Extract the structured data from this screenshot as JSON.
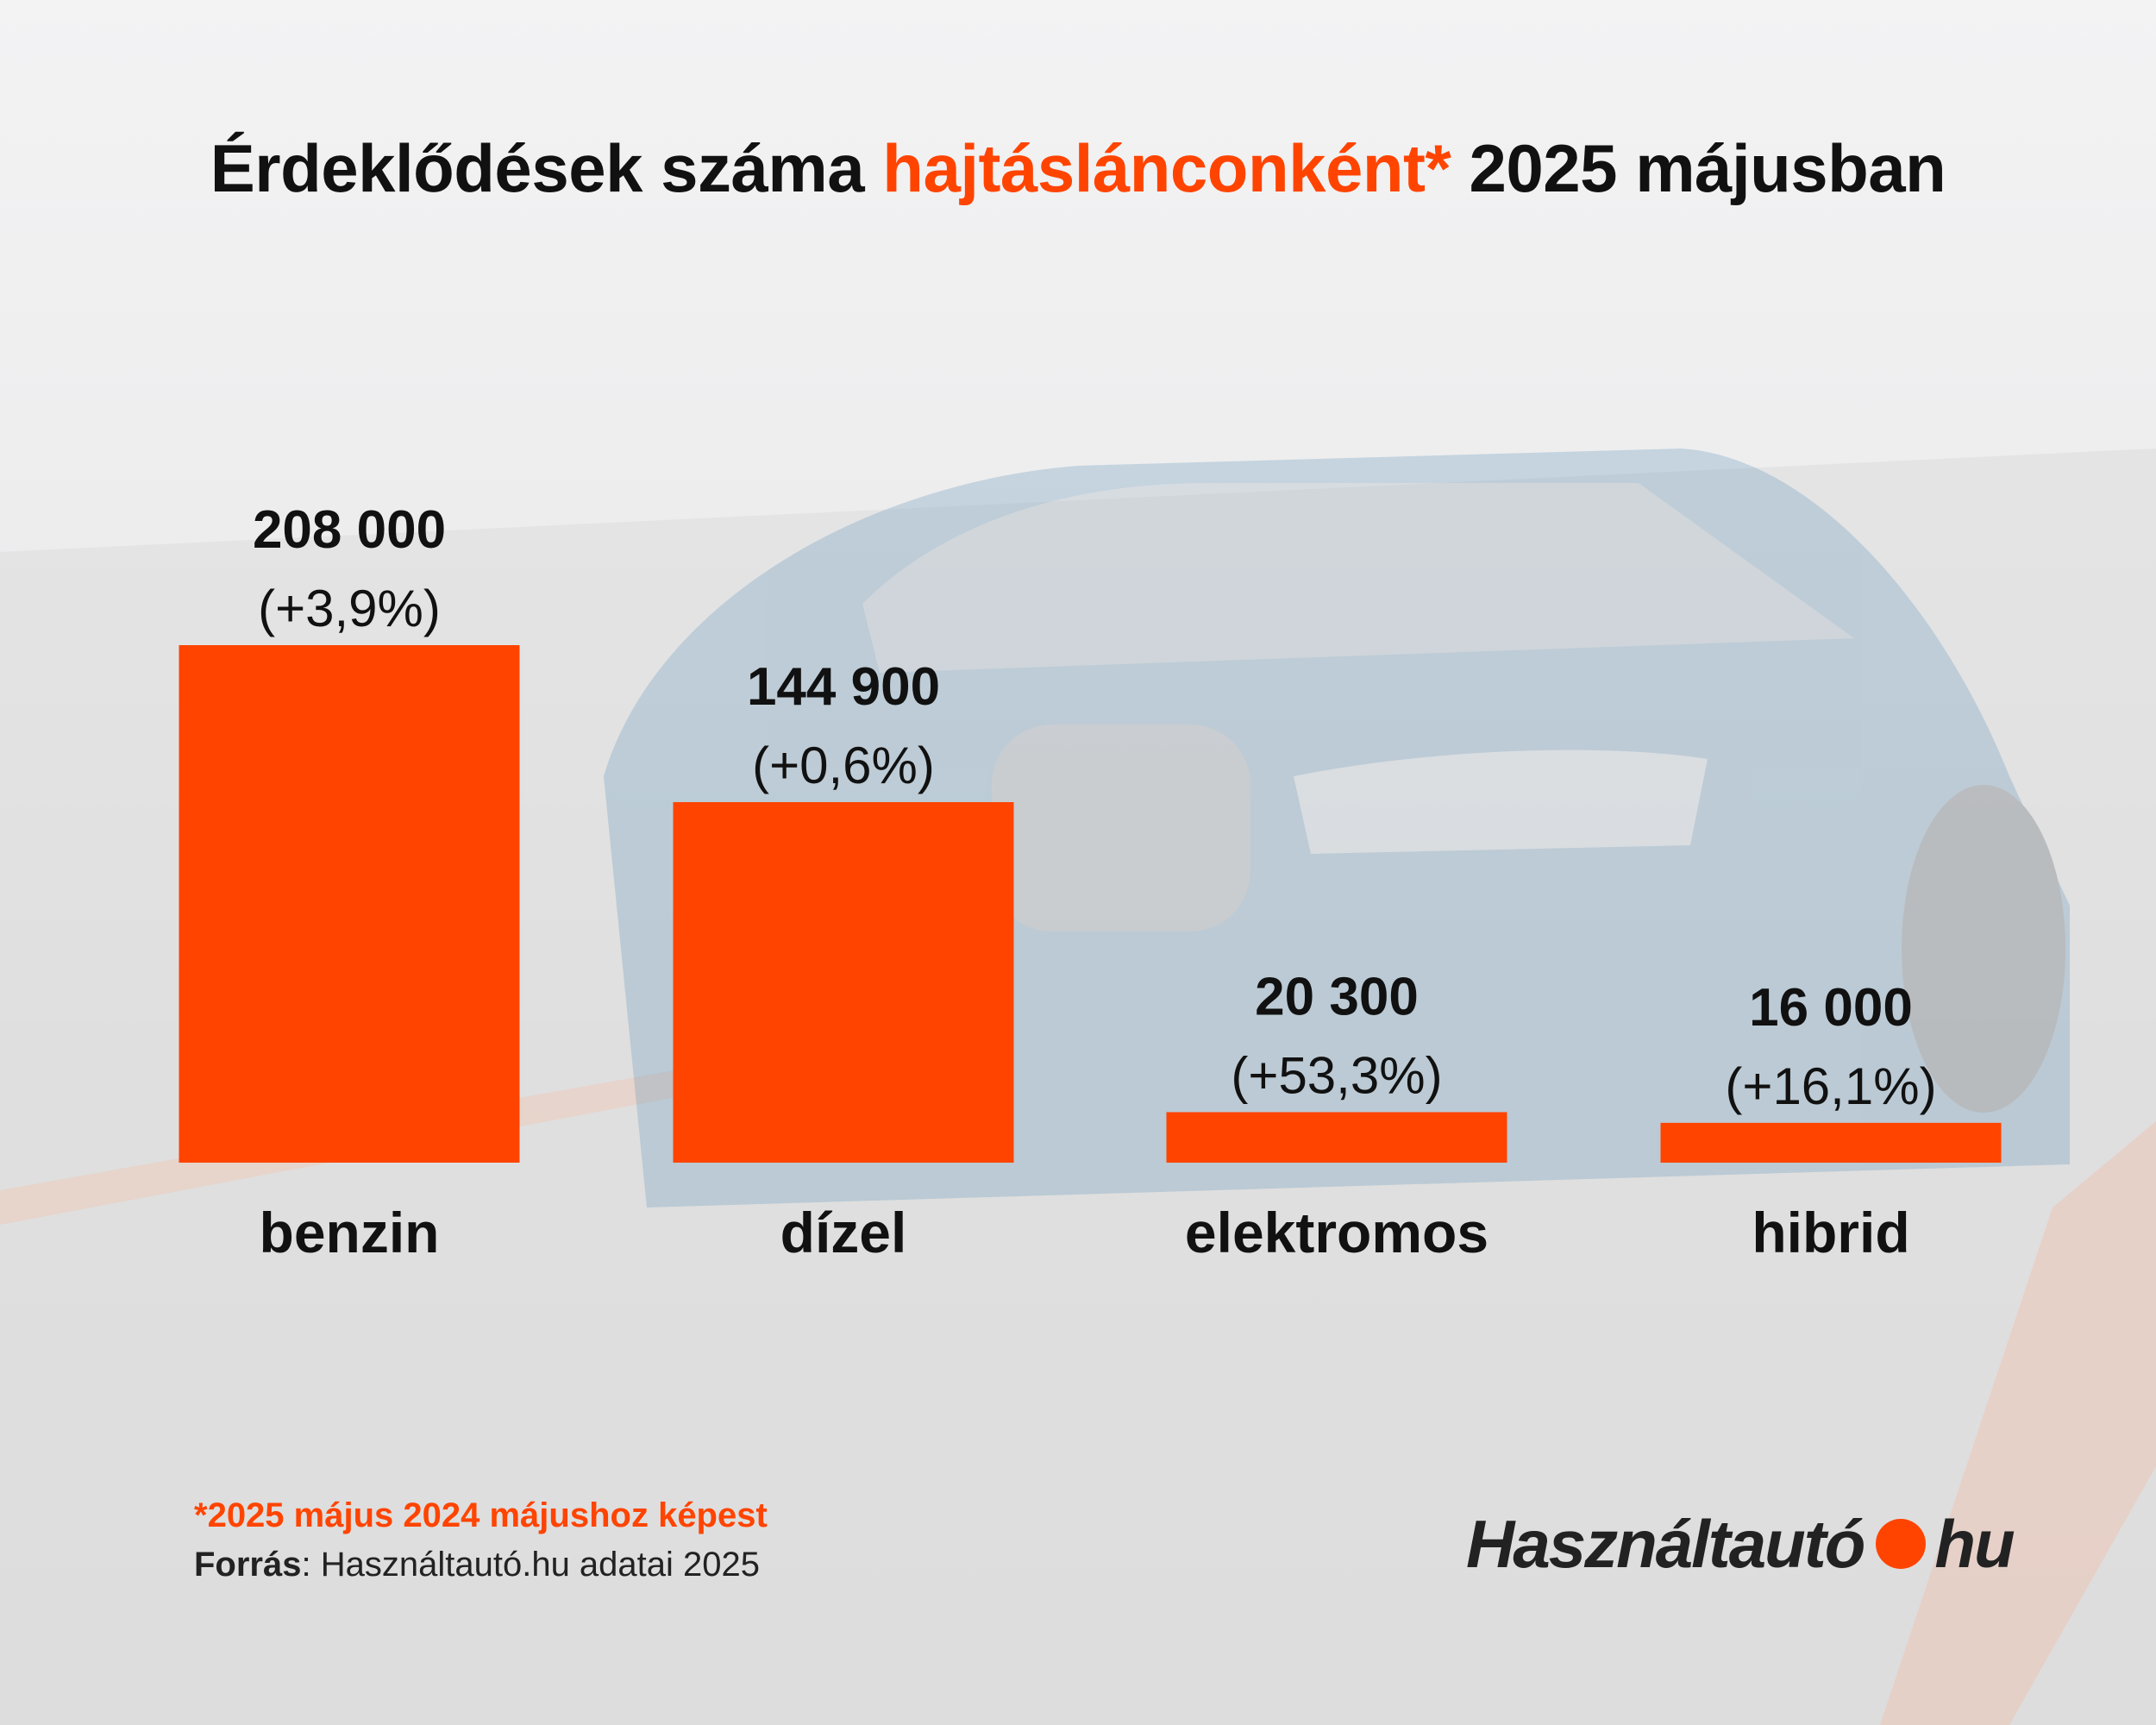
{
  "title": {
    "part1": "Érdeklődések száma ",
    "highlight": "hajtásláncon­ként*",
    "part2": " 2025 májusban"
  },
  "colors": {
    "accent": "#ff4400",
    "text": "#111111",
    "background": "#e9e9ea"
  },
  "chart_data": {
    "type": "bar",
    "categories": [
      "benzin",
      "dízel",
      "elektromos",
      "hibrid"
    ],
    "values": [
      208000,
      144900,
      20300,
      16000
    ],
    "value_labels": [
      "208 000",
      "144 900",
      "20 300",
      "16 000"
    ],
    "change_labels": [
      "(+3,9%)",
      "(+0,6%)",
      "(+53,3%)",
      "(+16,1%)"
    ],
    "xlabel": "",
    "ylabel": "",
    "ylim": [
      0,
      208000
    ],
    "grid": false,
    "legend": "none"
  },
  "footnote": "*2025 május 2024 májushoz képest",
  "source": {
    "label": "Forrás",
    "text": ": Használtautó.hu adatai 2025"
  },
  "logo": {
    "left": "Használtautó",
    "right": "hu"
  }
}
